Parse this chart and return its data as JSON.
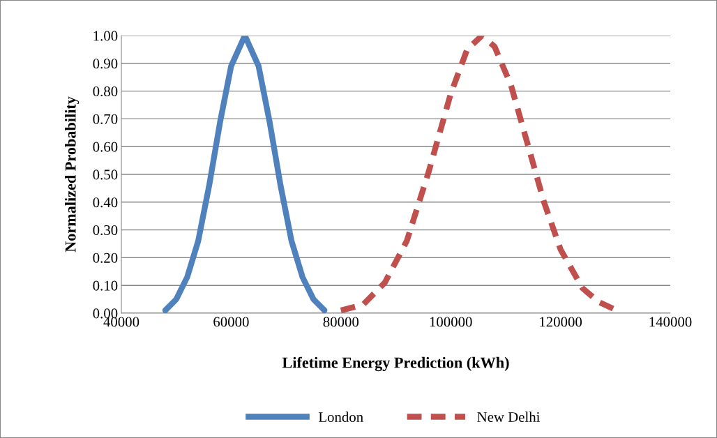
{
  "chart_data": {
    "type": "line",
    "xlabel": "Lifetime Energy Prediction (kWh)",
    "ylabel": "Normalized Probability",
    "series": [
      {
        "name": "London",
        "color": "#4f81bd",
        "line_style": "solid",
        "x": [
          48000,
          50000,
          52000,
          54000,
          56000,
          58000,
          60000,
          62500,
          65000,
          67000,
          69000,
          71000,
          73000,
          75000,
          77000
        ],
        "values": [
          0.01,
          0.05,
          0.13,
          0.26,
          0.46,
          0.69,
          0.89,
          1.0,
          0.89,
          0.69,
          0.46,
          0.26,
          0.13,
          0.05,
          0.01
        ]
      },
      {
        "name": "New Delhi",
        "color": "#c0504d",
        "line_style": "dashed",
        "x": [
          80000,
          84000,
          88000,
          92000,
          96000,
          100000,
          103000,
          105700,
          108000,
          111000,
          114000,
          117000,
          120000,
          124000,
          127000,
          130300
        ],
        "values": [
          0.01,
          0.03,
          0.11,
          0.26,
          0.51,
          0.79,
          0.95,
          1.0,
          0.96,
          0.82,
          0.61,
          0.4,
          0.23,
          0.09,
          0.04,
          0.01
        ]
      }
    ],
    "xlim": [
      40000,
      140000
    ],
    "xticks": [
      40000,
      60000,
      80000,
      100000,
      120000,
      140000
    ],
    "ylim": [
      0,
      1
    ],
    "yticks": [
      {
        "value": 0,
        "label": "0.00"
      },
      {
        "value": 0.1,
        "label": "0.10"
      },
      {
        "value": 0.2,
        "label": "0.20"
      },
      {
        "value": 0.3,
        "label": "0.30"
      },
      {
        "value": 0.4,
        "label": "0.40"
      },
      {
        "value": 0.5,
        "label": "0.50"
      },
      {
        "value": 0.6,
        "label": "0.60"
      },
      {
        "value": 0.7,
        "label": "0.70"
      },
      {
        "value": 0.8,
        "label": "0.80"
      },
      {
        "value": 0.9,
        "label": "0.90"
      },
      {
        "value": 1.0,
        "label": "1.00"
      }
    ],
    "grid": "y",
    "legend": "bottom",
    "marker": "none"
  }
}
